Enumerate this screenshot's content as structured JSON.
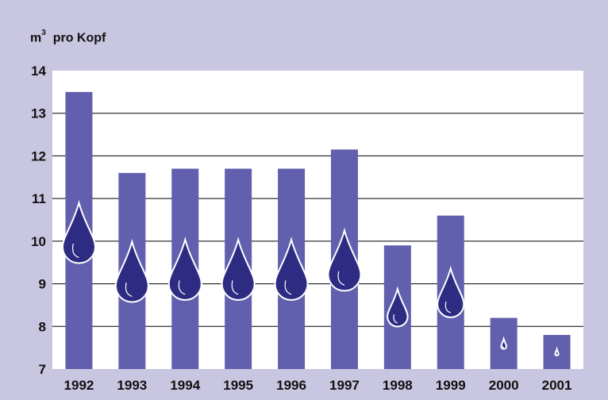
{
  "colors": {
    "background": "#C8C6E0",
    "plot_area": "#FFFFFF",
    "bar": "#6260AE",
    "drop": "#2E2B82",
    "text": "#111111"
  },
  "unit_label": {
    "prefix": "m",
    "superscript": "3",
    "suffix": "pro Kopf"
  },
  "chart_data": {
    "type": "bar",
    "title": "",
    "xlabel": "",
    "ylabel": "m³ pro Kopf",
    "categories": [
      "1992",
      "1993",
      "1994",
      "1995",
      "1996",
      "1997",
      "1998",
      "1999",
      "2000",
      "2001"
    ],
    "values": [
      13.5,
      11.6,
      11.7,
      11.7,
      11.7,
      12.15,
      9.9,
      10.6,
      8.2,
      7.8
    ],
    "ylim": [
      7,
      14
    ],
    "yticks": [
      "7",
      "8",
      "9",
      "10",
      "11",
      "12",
      "13",
      "14"
    ],
    "grid": true,
    "decoration": "water-drop-icon"
  }
}
